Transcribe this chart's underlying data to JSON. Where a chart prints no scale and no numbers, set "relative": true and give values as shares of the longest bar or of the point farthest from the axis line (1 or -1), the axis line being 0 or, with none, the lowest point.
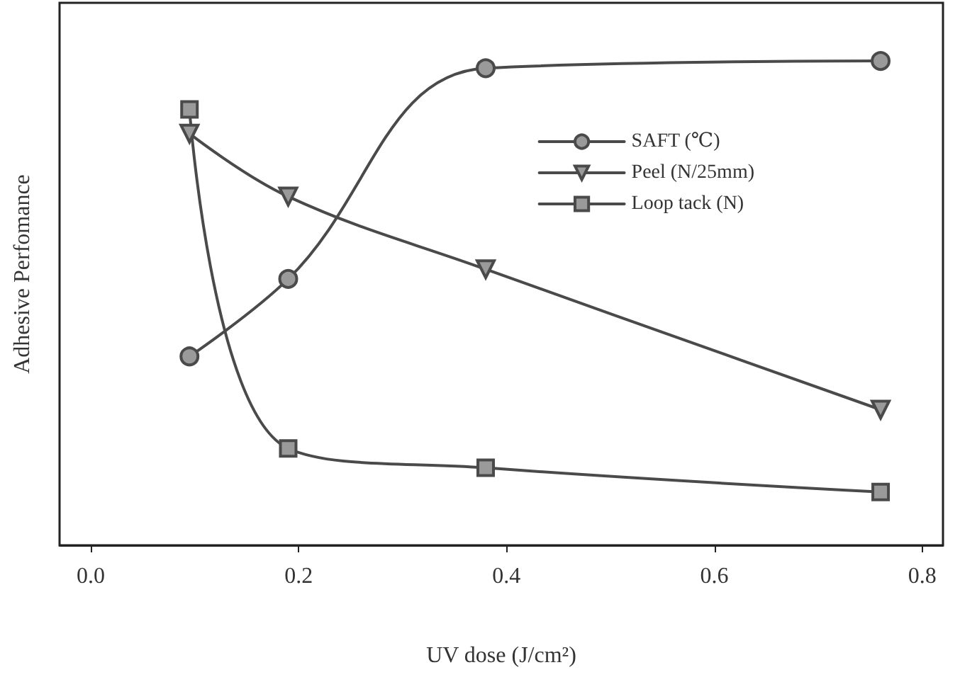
{
  "chart_data": {
    "type": "line",
    "xlabel": "UV dose (J/cm²)",
    "ylabel": "Adhesive Perfomance",
    "relative": true,
    "xlim": [
      -0.03,
      0.82
    ],
    "xticks": [
      {
        "value": 0,
        "label": "0.0"
      },
      0.2,
      0.4,
      0.6,
      0.8
    ],
    "x": [
      0.095,
      0.19,
      0.38,
      0.76
    ],
    "series": [
      {
        "name": "SAFT (℃)",
        "color": "#4a4a4a",
        "marker": "circle",
        "values": [
          0.39,
          0.55,
          0.985,
          1
        ]
      },
      {
        "name": "Peel (N/25mm)",
        "color": "#4a4a4a",
        "marker": "triangle",
        "values": [
          0.85,
          0.72,
          0.57,
          0.28
        ]
      },
      {
        "name": "Loop tack (N)",
        "color": "#4a4a4a",
        "marker": "square",
        "values": [
          0.9,
          0.2,
          0.16,
          0.11
        ]
      }
    ],
    "legend": "top right",
    "grid": false,
    "line_style": "solid"
  }
}
